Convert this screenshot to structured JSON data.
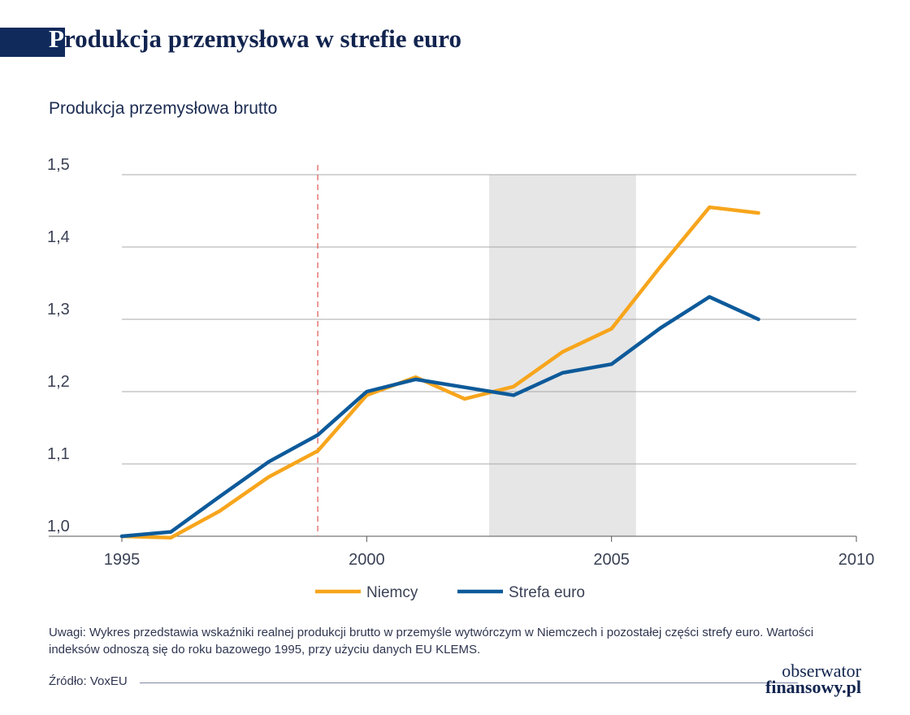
{
  "header": {
    "title_first_letter": "P",
    "title_rest": "rodukcja przemysłowa w strefie euro"
  },
  "chart_data": {
    "type": "line",
    "subtitle": "Produkcja przemysłowa brutto",
    "x": [
      1995,
      1996,
      1997,
      1998,
      1999,
      2000,
      2001,
      2002,
      2003,
      2004,
      2005,
      2006,
      2007,
      2008
    ],
    "series": [
      {
        "name": "Niemcy",
        "color": "#f7a51c",
        "values": [
          1.0,
          0.998,
          1.035,
          1.082,
          1.118,
          1.195,
          1.22,
          1.19,
          1.207,
          1.255,
          1.287,
          1.373,
          1.455,
          1.447
        ]
      },
      {
        "name": "Strefa euro",
        "color": "#0d5a9a",
        "values": [
          1.0,
          1.006,
          1.055,
          1.103,
          1.14,
          1.2,
          1.217,
          1.206,
          1.195,
          1.226,
          1.238,
          1.288,
          1.331,
          1.3
        ]
      }
    ],
    "xticks": [
      "1995",
      "2000",
      "2005",
      "2010"
    ],
    "yticks": [
      "1,0",
      "1,1",
      "1,2",
      "1,3",
      "1,4",
      "1,5"
    ],
    "xlim": [
      1995,
      2010
    ],
    "ylim": [
      1.0,
      1.5
    ],
    "highlight_period": [
      2002.5,
      2005.5
    ],
    "reference_line_x": 1999,
    "grid": "horizontal",
    "legend_position": "bottom"
  },
  "note": "Uwagi: Wykres przedstawia wskaźniki realnej produkcji brutto w przemyśle wytwórczym w Niemczech i pozostałej części strefy euro. Wartości indeksów odnoszą się do roku bazowego 1995, przy użyciu danych EU KLEMS.",
  "source": "Źródło: VoxEU",
  "logo": {
    "line1": "obserwator",
    "line2": "finansowy.pl"
  }
}
